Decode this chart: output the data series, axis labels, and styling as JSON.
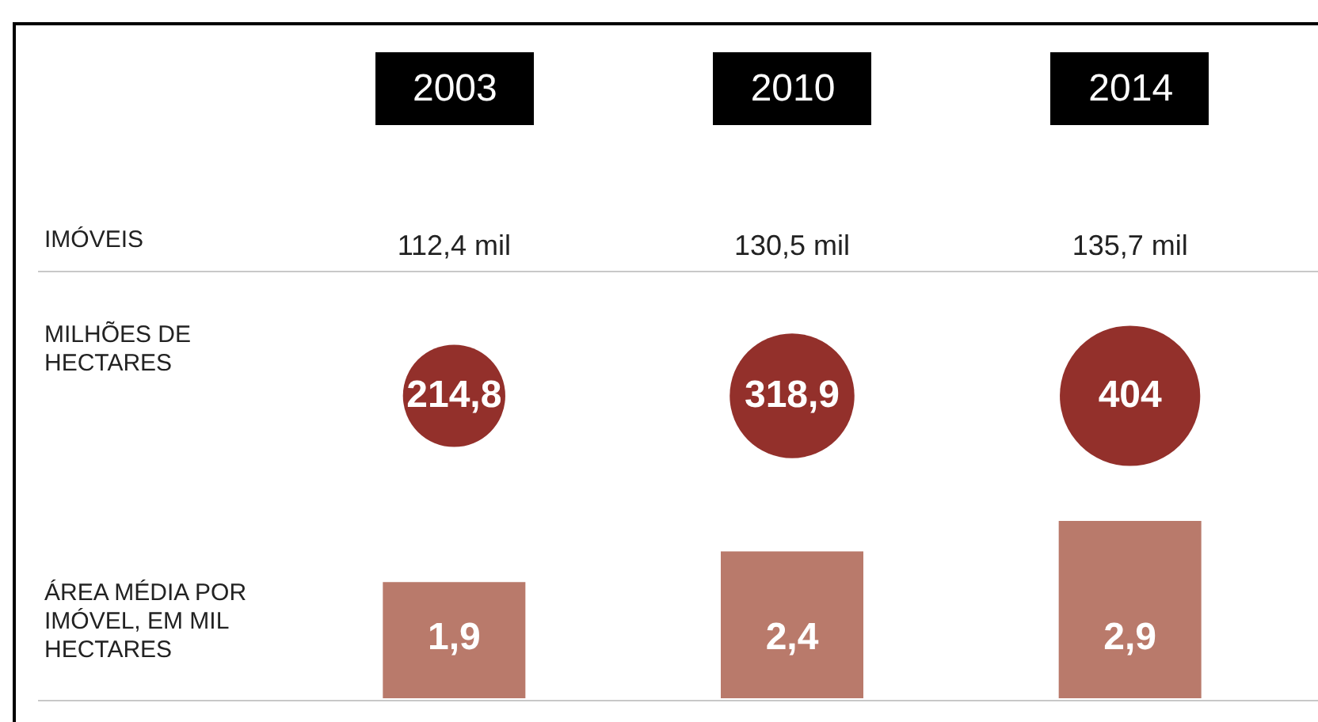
{
  "chart_data": [
    {
      "type": "other",
      "ylabel": "IMÓVEIS",
      "categories": [
        "2003",
        "2010",
        "2014"
      ],
      "values": [
        112.4,
        130.5,
        135.7
      ],
      "value_labels": [
        "112,4 mil",
        "130,5 mil",
        "135,7 mil"
      ]
    },
    {
      "type": "other",
      "ylabel": "MILHÕES DE HECTARES",
      "values": [
        214.8,
        318.9,
        404
      ],
      "value_labels": [
        "214,8",
        "318,9",
        "404"
      ],
      "color": "#93302b"
    },
    {
      "type": "bar",
      "ylabel": "ÁREA MÉDIA POR IMÓVEL, EM MIL HECTARES",
      "categories": [
        "2003",
        "2010",
        "2014"
      ],
      "values": [
        1.9,
        2.4,
        2.9
      ],
      "value_labels": [
        "1,9",
        "2,4",
        "2,9"
      ],
      "color": "#b97a6b",
      "tick_labels": false
    }
  ]
}
